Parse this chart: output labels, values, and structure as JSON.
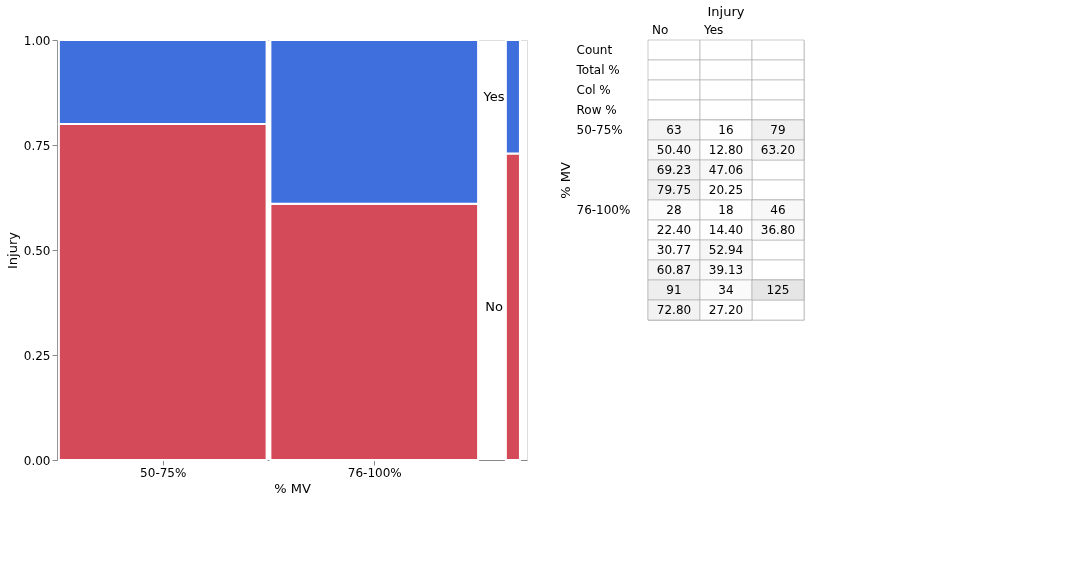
{
  "chart_data": [
    {
      "type": "bar",
      "stacked": true,
      "xlabel": "% MV",
      "ylabel": "Injury",
      "categories": [
        "50-75%",
        "76-100%",
        null
      ],
      "series": [
        {
          "name": "No",
          "color": "#d54a58",
          "values": [
            0.8,
            0.61,
            0.73
          ]
        },
        {
          "name": "Yes",
          "color": "#3f6fdc",
          "values": [
            0.2,
            0.39,
            0.27
          ]
        }
      ],
      "ylim": [
        0,
        1
      ],
      "yticks": [
        {
          "value": 0,
          "label": "0.00"
        },
        {
          "value": 0.25,
          "label": "0.25"
        },
        {
          "value": 0.5,
          "label": "0.50"
        },
        {
          "value": 0.75,
          "label": "0.75"
        },
        {
          "value": 1,
          "label": "1.00"
        }
      ],
      "grid": false,
      "legend": false
    },
    {
      "type": "heatmap",
      "title": "Injury",
      "ylabel": "% MV",
      "categories": [
        "No",
        "Yes",
        null
      ],
      "y_categories": [
        "Count",
        "Total %",
        "Col %",
        "Row %",
        "50-75%",
        null,
        null,
        null,
        "76-100%",
        null,
        null,
        null,
        null,
        null
      ],
      "cells": [
        [
          null,
          null,
          null
        ],
        [
          null,
          null,
          null
        ],
        [
          null,
          null,
          null
        ],
        [
          null,
          null,
          null
        ],
        [
          63,
          16,
          79
        ],
        [
          50.4,
          12.8,
          63.2
        ],
        [
          69.23,
          47.06,
          null
        ],
        [
          79.75,
          20.25,
          null
        ],
        [
          28,
          18,
          46
        ],
        [
          22.4,
          14.4,
          36.8
        ],
        [
          30.77,
          52.94,
          null
        ],
        [
          60.87,
          39.13,
          null
        ],
        [
          91,
          34,
          125
        ],
        [
          72.8,
          27.2,
          null
        ]
      ],
      "cell_labels": [
        [
          null,
          null,
          null
        ],
        [
          null,
          null,
          null
        ],
        [
          null,
          null,
          null
        ],
        [
          null,
          null,
          null
        ],
        [
          "63",
          "16",
          "79"
        ],
        [
          "50.40",
          "12.80",
          "63.20"
        ],
        [
          "69.23",
          "47.06",
          null
        ],
        [
          "79.75",
          "20.25",
          null
        ],
        [
          "28",
          "18",
          "46"
        ],
        [
          "22.40",
          "14.40",
          "36.80"
        ],
        [
          "30.77",
          "52.94",
          null
        ],
        [
          "60.87",
          "39.13",
          null
        ],
        [
          "91",
          "34",
          "125"
        ],
        [
          "72.80",
          "27.20",
          null
        ]
      ]
    }
  ]
}
